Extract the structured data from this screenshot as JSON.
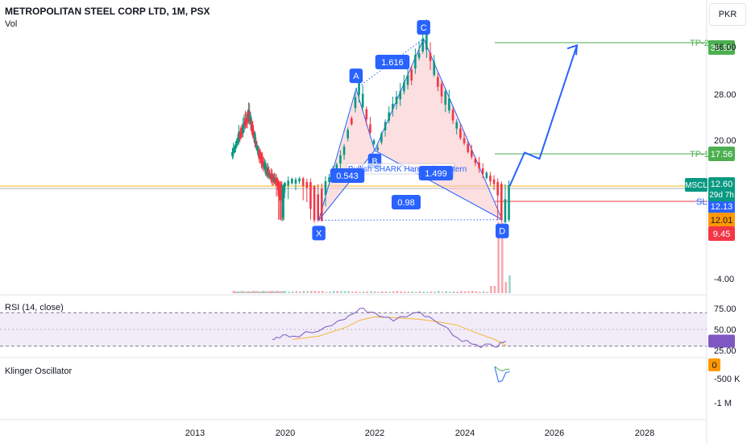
{
  "header": {
    "title": "METROPOLITAN STEEL CORP LTD, 1M, PSX",
    "volume_label": "Vol",
    "currency": "PKR"
  },
  "colors": {
    "up": "#089981",
    "down": "#f23645",
    "pattern_fill": "#f7c5c8",
    "pattern_line": "#2962ff",
    "rsi_line": "#7e57c2",
    "rsi_ma": "#f7b731",
    "rsi_band": "#ede7f6",
    "tp_line": "#4caf50",
    "sl_line": "#f23645",
    "price_line": "#f0b90b"
  },
  "chart_data": [
    {
      "type": "candlestick",
      "title": "METROPOLITAN STEEL CORP LTD, 1M, PSX",
      "y_scale": "log",
      "y_axis_ticks": [
        "36.00",
        "28.00",
        "20.00",
        "-4.00"
      ],
      "x_axis_ticks": [
        "2013",
        "2020",
        "2022",
        "2024",
        "2026",
        "2028"
      ],
      "harmonic_pattern": {
        "name": "Bullish SHARK Harmonic Pattern",
        "points": [
          {
            "label": "X",
            "date": "2020-10",
            "price": 11.8
          },
          {
            "label": "A",
            "date": "2021-08",
            "price": 29.0
          },
          {
            "label": "B",
            "date": "2022-01",
            "price": 18.2
          },
          {
            "label": "C",
            "date": "2023-02",
            "price": 38.0
          },
          {
            "label": "D",
            "date": "2024-11",
            "price": 11.9
          }
        ],
        "ratios": [
          "1.616",
          "0.543",
          "1.499",
          "0.98"
        ]
      },
      "levels": [
        {
          "label": "TP-2",
          "value": "36.99"
        },
        {
          "label": "TP-1",
          "value": "17.56"
        },
        {
          "label": "SL",
          "value": "12.13"
        }
      ],
      "price_badges": [
        {
          "label": "MSCL",
          "value": "12.60",
          "countdown": "29d 7h"
        },
        {
          "label": "",
          "value": "12.01"
        },
        {
          "label": "",
          "value": "9.45"
        }
      ],
      "projection": [
        {
          "date": "2025-01",
          "price": 12.6
        },
        {
          "date": "2025-05",
          "price": 17.8
        },
        {
          "date": "2025-09",
          "price": 16.8
        },
        {
          "date": "2026-07",
          "price": 36.8
        }
      ]
    },
    {
      "type": "line",
      "title": "RSI (14, close)",
      "ylim": [
        25,
        75
      ],
      "y_axis_ticks": [
        "75.00",
        "50.00",
        "25.00"
      ],
      "bands": [
        30,
        70
      ],
      "series": [
        {
          "name": "",
          "x": [
            "2019-01",
            "2019-08",
            "2020-03",
            "2020-10",
            "2021-05",
            "2021-09",
            "2022-01",
            "2022-06",
            "2023-01",
            "2023-06",
            "2023-11",
            "2024-04",
            "2024-09",
            "2024-12"
          ],
          "values": [
            38,
            40,
            42,
            48,
            62,
            75,
            70,
            60,
            71,
            57,
            40,
            32,
            29,
            36
          ]
        },
        {
          "name": "",
          "x": [
            "2020-03",
            "2020-10",
            "2021-05",
            "2021-09",
            "2022-01",
            "2022-06",
            "2023-01",
            "2023-06",
            "2023-11",
            "2024-04",
            "2024-09",
            "2024-12"
          ],
          "values": [
            38,
            42,
            52,
            61,
            65,
            64,
            62,
            59,
            55,
            46,
            38,
            31
          ]
        }
      ]
    },
    {
      "type": "line",
      "title": "Klinger Oscillator",
      "y_axis_ticks": [
        "0",
        "-500 K",
        "-1 M"
      ],
      "series": [
        {
          "name": "",
          "x": [
            "2024-09",
            "2024-10",
            "2024-11",
            "2024-12",
            "2025-01"
          ],
          "values": [
            -50000,
            -450000,
            -420000,
            -200000,
            -180000
          ]
        },
        {
          "name": "",
          "x": [
            "2024-09",
            "2024-10",
            "2024-11",
            "2024-12",
            "2025-01"
          ],
          "values": [
            -40000,
            -120000,
            -160000,
            -120000,
            -110000
          ]
        }
      ]
    }
  ]
}
